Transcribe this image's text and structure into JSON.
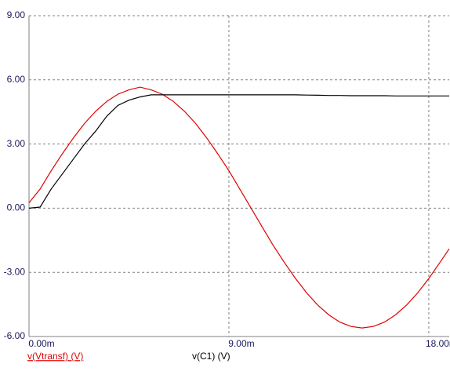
{
  "chart_data": {
    "type": "line",
    "x": [
      0,
      0.5,
      1,
      1.5,
      2,
      2.5,
      3,
      3.5,
      4,
      4.5,
      5,
      5.5,
      6,
      6.5,
      7,
      7.5,
      8,
      8.5,
      9,
      9.5,
      10,
      10.5,
      11,
      11.5,
      12,
      12.5,
      13,
      13.5,
      14,
      14.5,
      15,
      15.5,
      16,
      16.5,
      17,
      17.5,
      18,
      18.5,
      18.92
    ],
    "series": [
      {
        "name": "v(Vtransf) (V)",
        "color": "#e00000",
        "values": [
          0.25,
          0.9,
          1.75,
          2.54,
          3.29,
          3.96,
          4.53,
          4.99,
          5.33,
          5.53,
          5.66,
          5.53,
          5.33,
          4.99,
          4.53,
          3.96,
          3.29,
          2.54,
          1.75,
          0.88,
          0,
          -0.88,
          -1.75,
          -2.54,
          -3.29,
          -3.96,
          -4.53,
          -4.99,
          -5.33,
          -5.53,
          -5.6,
          -5.53,
          -5.33,
          -4.99,
          -4.53,
          -3.96,
          -3.29,
          -2.54,
          -1.9
        ]
      },
      {
        "name": "v(C1) (V)",
        "color": "#000000",
        "values": [
          0,
          0.05,
          0.9,
          1.6,
          2.3,
          3.0,
          3.6,
          4.3,
          4.8,
          5.05,
          5.2,
          5.3,
          5.3,
          5.3,
          5.3,
          5.3,
          5.3,
          5.3,
          5.3,
          5.3,
          5.3,
          5.3,
          5.3,
          5.3,
          5.3,
          5.29,
          5.28,
          5.27,
          5.27,
          5.26,
          5.26,
          5.26,
          5.26,
          5.25,
          5.25,
          5.25,
          5.25,
          5.25,
          5.25
        ]
      }
    ],
    "xlim": [
      0,
      18.92
    ],
    "xticks": [
      {
        "value": 0,
        "label": "0.00m"
      },
      {
        "value": 9,
        "label": "9.00m"
      },
      {
        "value": 18,
        "label": "18.00m"
      }
    ],
    "ylim": [
      -6,
      9
    ],
    "yticks": [
      {
        "value": 9,
        "label": "9.00"
      },
      {
        "value": 6,
        "label": "6.00"
      },
      {
        "value": 3,
        "label": "3.00"
      },
      {
        "value": 0,
        "label": "0.00"
      },
      {
        "value": -3,
        "label": "-3.00"
      },
      {
        "value": -6,
        "label": "-6.00"
      }
    ],
    "grid": true
  }
}
